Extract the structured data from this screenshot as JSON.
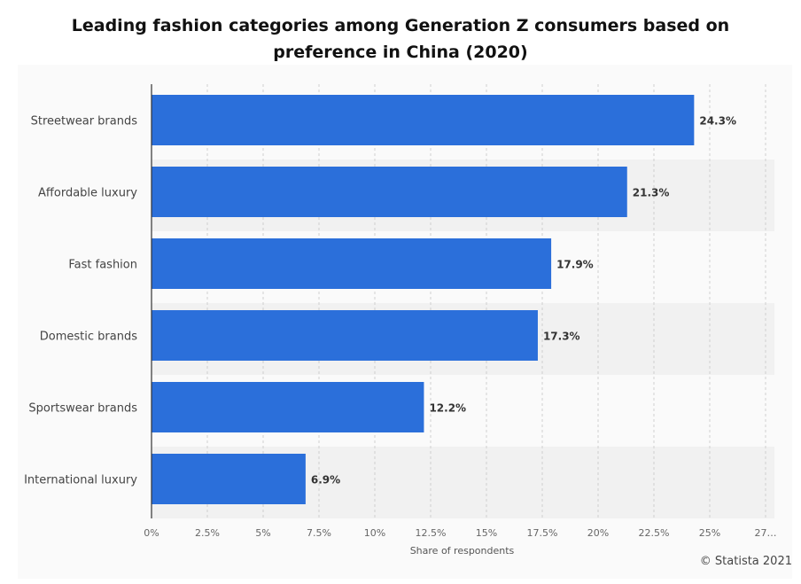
{
  "chart_data": {
    "type": "bar",
    "orientation": "horizontal",
    "title": "Leading fashion categories among Generation Z consumers based on preference in China (2020)",
    "categories": [
      "Streetwear brands",
      "Affordable luxury",
      "Fast fashion",
      "Domestic brands",
      "Sportswear brands",
      "International luxury"
    ],
    "values": [
      24.3,
      21.3,
      17.9,
      17.3,
      12.2,
      6.9
    ],
    "value_labels": [
      "24.3%",
      "21.3%",
      "17.9%",
      "17.3%",
      "12.2%",
      "6.9%"
    ],
    "xlabel": "Share of respondents",
    "ylabel": "",
    "xlim": [
      0,
      27.5
    ],
    "x_ticks": [
      0,
      2.5,
      5,
      7.5,
      10,
      12.5,
      15,
      17.5,
      20,
      22.5,
      25,
      27.5
    ],
    "x_tick_labels": [
      "0%",
      "2.5%",
      "5%",
      "7.5%",
      "10%",
      "12.5%",
      "15%",
      "17.5%",
      "20%",
      "22.5%",
      "25%",
      "27…"
    ],
    "grid": true,
    "bar_color": "#2b6fda"
  },
  "credit": "© Statista 2021"
}
